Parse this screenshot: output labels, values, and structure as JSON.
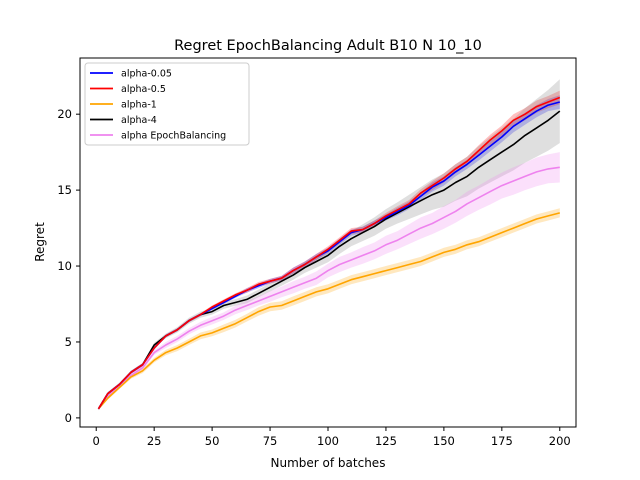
{
  "chart_data": {
    "type": "line",
    "title": "Regret EpochBalancing Adult B10 N 10_10",
    "xlabel": "Number of batches",
    "ylabel": "Regret",
    "xlim": [
      -7,
      207
    ],
    "ylim": [
      -0.6,
      23.7
    ],
    "xticks": [
      0,
      25,
      50,
      75,
      100,
      125,
      150,
      175,
      200
    ],
    "yticks": [
      0,
      5,
      10,
      15,
      20
    ],
    "legend_position": "top-left",
    "grid": false,
    "series": [
      {
        "name": "alpha-0.05",
        "color": "#0000ff",
        "band_color": "#0000ff",
        "x": [
          1,
          5,
          10,
          15,
          20,
          25,
          30,
          35,
          40,
          45,
          50,
          55,
          60,
          65,
          70,
          75,
          80,
          85,
          90,
          95,
          100,
          105,
          110,
          115,
          120,
          125,
          130,
          135,
          140,
          145,
          150,
          155,
          160,
          165,
          170,
          175,
          180,
          185,
          190,
          195,
          200
        ],
        "y": [
          0.6,
          1.6,
          2.2,
          3.0,
          3.5,
          4.6,
          5.4,
          5.8,
          6.4,
          6.8,
          7.2,
          7.6,
          8.0,
          8.4,
          8.7,
          9.0,
          9.2,
          9.7,
          10.1,
          10.6,
          11.0,
          11.6,
          12.2,
          12.4,
          12.8,
          13.2,
          13.6,
          14.0,
          14.6,
          15.2,
          15.6,
          16.2,
          16.7,
          17.3,
          17.9,
          18.5,
          19.2,
          19.7,
          20.2,
          20.6,
          20.8
        ],
        "err": [
          0.1,
          0.1,
          0.1,
          0.1,
          0.1,
          0.1,
          0.1,
          0.1,
          0.1,
          0.1,
          0.1,
          0.1,
          0.1,
          0.15,
          0.15,
          0.15,
          0.15,
          0.2,
          0.2,
          0.2,
          0.2,
          0.2,
          0.2,
          0.2,
          0.2,
          0.2,
          0.25,
          0.25,
          0.25,
          0.3,
          0.3,
          0.3,
          0.3,
          0.35,
          0.35,
          0.35,
          0.4,
          0.4,
          0.4,
          0.4,
          0.45
        ]
      },
      {
        "name": "alpha-0.5",
        "color": "#ff0000",
        "band_color": "#ff0000",
        "x": [
          1,
          5,
          10,
          15,
          20,
          25,
          30,
          35,
          40,
          45,
          50,
          55,
          60,
          65,
          70,
          75,
          80,
          85,
          90,
          95,
          100,
          105,
          110,
          115,
          120,
          125,
          130,
          135,
          140,
          145,
          150,
          155,
          160,
          165,
          170,
          175,
          180,
          185,
          190,
          195,
          200
        ],
        "y": [
          0.6,
          1.6,
          2.2,
          3.0,
          3.5,
          4.6,
          5.4,
          5.8,
          6.4,
          6.8,
          7.3,
          7.7,
          8.1,
          8.4,
          8.8,
          9.0,
          9.2,
          9.7,
          10.1,
          10.6,
          11.1,
          11.7,
          12.3,
          12.4,
          12.8,
          13.3,
          13.7,
          14.1,
          14.8,
          15.3,
          15.8,
          16.4,
          16.9,
          17.6,
          18.3,
          18.9,
          19.6,
          20.0,
          20.5,
          20.8,
          21.1
        ],
        "err": [
          0.1,
          0.1,
          0.1,
          0.1,
          0.1,
          0.1,
          0.1,
          0.1,
          0.1,
          0.1,
          0.1,
          0.1,
          0.1,
          0.15,
          0.15,
          0.15,
          0.15,
          0.2,
          0.2,
          0.2,
          0.2,
          0.2,
          0.2,
          0.2,
          0.2,
          0.2,
          0.25,
          0.25,
          0.25,
          0.3,
          0.3,
          0.3,
          0.3,
          0.35,
          0.35,
          0.35,
          0.4,
          0.4,
          0.4,
          0.4,
          0.45
        ]
      },
      {
        "name": "alpha-1",
        "color": "#ffa500",
        "band_color": "#ffa500",
        "x": [
          1,
          5,
          10,
          15,
          20,
          25,
          30,
          35,
          40,
          45,
          50,
          55,
          60,
          65,
          70,
          75,
          80,
          85,
          90,
          95,
          100,
          105,
          110,
          115,
          120,
          125,
          130,
          135,
          140,
          145,
          150,
          155,
          160,
          165,
          170,
          175,
          180,
          185,
          190,
          195,
          200
        ],
        "y": [
          0.6,
          1.3,
          2.0,
          2.7,
          3.1,
          3.8,
          4.3,
          4.6,
          5.0,
          5.4,
          5.6,
          5.9,
          6.2,
          6.6,
          7.0,
          7.3,
          7.4,
          7.7,
          8.0,
          8.3,
          8.5,
          8.8,
          9.1,
          9.3,
          9.5,
          9.7,
          9.9,
          10.1,
          10.3,
          10.6,
          10.9,
          11.1,
          11.4,
          11.6,
          11.9,
          12.2,
          12.5,
          12.8,
          13.1,
          13.3,
          13.5
        ],
        "err": [
          0.05,
          0.1,
          0.1,
          0.12,
          0.15,
          0.15,
          0.18,
          0.2,
          0.2,
          0.22,
          0.22,
          0.25,
          0.25,
          0.25,
          0.28,
          0.28,
          0.28,
          0.3,
          0.3,
          0.3,
          0.3,
          0.3,
          0.3,
          0.3,
          0.3,
          0.3,
          0.3,
          0.3,
          0.3,
          0.3,
          0.3,
          0.3,
          0.3,
          0.3,
          0.3,
          0.3,
          0.3,
          0.3,
          0.3,
          0.3,
          0.3
        ]
      },
      {
        "name": "alpha-4",
        "color": "#000000",
        "band_color": "#808080",
        "x": [
          1,
          5,
          10,
          15,
          20,
          25,
          30,
          35,
          40,
          45,
          50,
          55,
          60,
          65,
          70,
          75,
          80,
          85,
          90,
          95,
          100,
          105,
          110,
          115,
          120,
          125,
          130,
          135,
          140,
          145,
          150,
          155,
          160,
          165,
          170,
          175,
          180,
          185,
          190,
          195,
          200
        ],
        "y": [
          0.6,
          1.6,
          2.2,
          3.0,
          3.5,
          4.8,
          5.4,
          5.8,
          6.4,
          6.8,
          7.0,
          7.4,
          7.6,
          7.8,
          8.2,
          8.6,
          9.0,
          9.4,
          9.9,
          10.3,
          10.7,
          11.3,
          11.8,
          12.2,
          12.6,
          13.1,
          13.5,
          13.9,
          14.3,
          14.7,
          15.0,
          15.5,
          15.9,
          16.5,
          17.0,
          17.5,
          18.0,
          18.6,
          19.1,
          19.6,
          20.2
        ],
        "err": [
          0.05,
          0.1,
          0.1,
          0.1,
          0.12,
          0.15,
          0.15,
          0.18,
          0.2,
          0.2,
          0.2,
          0.22,
          0.22,
          0.25,
          0.25,
          0.28,
          0.3,
          0.3,
          0.35,
          0.4,
          0.45,
          0.5,
          0.5,
          0.55,
          0.6,
          0.65,
          0.7,
          0.8,
          0.9,
          1.0,
          1.1,
          1.2,
          1.3,
          1.4,
          1.5,
          1.6,
          1.7,
          1.8,
          1.9,
          2.0,
          2.1
        ]
      },
      {
        "name": "alpha EpochBalancing",
        "color": "#ee82ee",
        "band_color": "#ee82ee",
        "x": [
          1,
          5,
          10,
          15,
          20,
          25,
          30,
          35,
          40,
          45,
          50,
          55,
          60,
          65,
          70,
          75,
          80,
          85,
          90,
          95,
          100,
          105,
          110,
          115,
          120,
          125,
          130,
          135,
          140,
          145,
          150,
          155,
          160,
          165,
          170,
          175,
          180,
          185,
          190,
          195,
          200
        ],
        "y": [
          0.6,
          1.4,
          2.1,
          2.8,
          3.3,
          4.3,
          4.8,
          5.2,
          5.7,
          6.1,
          6.4,
          6.7,
          7.1,
          7.4,
          7.7,
          8.0,
          8.3,
          8.6,
          8.9,
          9.2,
          9.7,
          10.1,
          10.4,
          10.7,
          11.0,
          11.4,
          11.7,
          12.1,
          12.5,
          12.8,
          13.2,
          13.6,
          14.1,
          14.5,
          14.9,
          15.3,
          15.6,
          15.9,
          16.2,
          16.4,
          16.5
        ],
        "err": [
          0.05,
          0.1,
          0.1,
          0.12,
          0.15,
          0.15,
          0.2,
          0.2,
          0.2,
          0.22,
          0.25,
          0.25,
          0.28,
          0.3,
          0.3,
          0.35,
          0.35,
          0.4,
          0.4,
          0.45,
          0.45,
          0.5,
          0.5,
          0.55,
          0.55,
          0.6,
          0.6,
          0.65,
          0.7,
          0.7,
          0.75,
          0.75,
          0.8,
          0.8,
          0.85,
          0.85,
          0.9,
          0.9,
          0.95,
          0.95,
          1.0
        ]
      }
    ]
  }
}
